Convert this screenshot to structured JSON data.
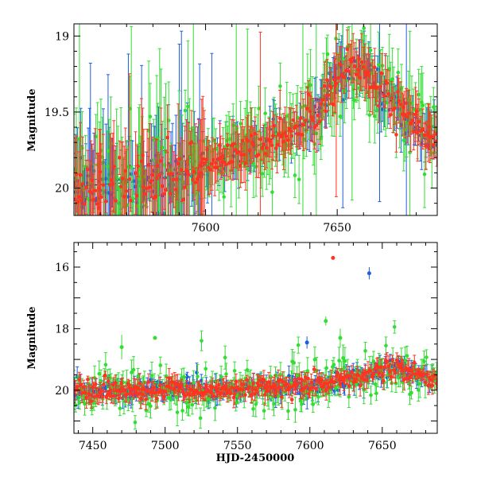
{
  "colors": {
    "blue": "#1f5fe0",
    "green": "#33dd33",
    "red": "#ff3322",
    "model": "#000000"
  },
  "chart_data": [
    {
      "type": "scatter",
      "panel": "top",
      "title": "",
      "xlabel": "",
      "ylabel": "Magnitude",
      "xlim": [
        7550,
        7688
      ],
      "ylim": [
        20.18,
        18.92
      ],
      "y_inverted": true,
      "x_ticks": [
        7600,
        7650
      ],
      "y_ticks": [
        19,
        19.5,
        20
      ],
      "x_tick_labels": [
        "7600",
        "7650"
      ],
      "y_tick_labels": [
        "19",
        "19.5",
        "20"
      ],
      "model_curve": {
        "style": "dashed",
        "x": [
          7550,
          7580,
          7600,
          7620,
          7640,
          7650,
          7655,
          7660,
          7665,
          7670,
          7675,
          7680,
          7688
        ],
        "y": [
          19.99,
          19.95,
          19.85,
          19.72,
          19.55,
          19.28,
          19.2,
          19.22,
          19.33,
          19.42,
          19.5,
          19.58,
          19.7
        ]
      },
      "series": [
        {
          "color": "blue",
          "marker": "circle"
        },
        {
          "color": "green",
          "marker": "circle"
        },
        {
          "color": "red",
          "marker": "circle"
        }
      ]
    },
    {
      "type": "scatter",
      "panel": "bottom",
      "title": "",
      "xlabel": "HJD-2450000",
      "ylabel": "Magnitude",
      "xlim": [
        7437,
        7688
      ],
      "ylim": [
        21.4,
        15.2
      ],
      "y_inverted": true,
      "x_ticks": [
        7450,
        7500,
        7550,
        7600,
        7650
      ],
      "y_ticks": [
        16,
        18,
        20
      ],
      "x_tick_labels": [
        "7450",
        "7500",
        "7550",
        "7600",
        "7650"
      ],
      "y_tick_labels": [
        "16",
        "18",
        "20"
      ],
      "model_curve": {
        "style": "dashed",
        "x": [
          7440,
          7500,
          7550,
          7600,
          7640,
          7650,
          7655,
          7660,
          7670,
          7680,
          7688
        ],
        "y": [
          20.02,
          20.0,
          19.98,
          19.85,
          19.55,
          19.3,
          19.2,
          19.22,
          19.42,
          19.58,
          19.7
        ]
      },
      "outliers": [
        {
          "color": "red",
          "x": 7616,
          "y": 15.7,
          "err": 0.05
        },
        {
          "color": "blue",
          "x": 7641,
          "y": 16.2,
          "err": 0.2
        },
        {
          "color": "green",
          "x": 7611,
          "y": 17.75,
          "err": 0.15
        },
        {
          "color": "green",
          "x": 7621,
          "y": 18.3,
          "err": 0.3
        },
        {
          "color": "green",
          "x": 7493,
          "y": 18.3,
          "err": 0.05
        },
        {
          "color": "blue",
          "x": 7598,
          "y": 18.45,
          "err": 0.2
        },
        {
          "color": "green",
          "x": 7470,
          "y": 18.6,
          "err": 0.4
        }
      ],
      "series": [
        {
          "color": "blue",
          "marker": "circle"
        },
        {
          "color": "green",
          "marker": "circle"
        },
        {
          "color": "red",
          "marker": "circle"
        }
      ]
    }
  ]
}
